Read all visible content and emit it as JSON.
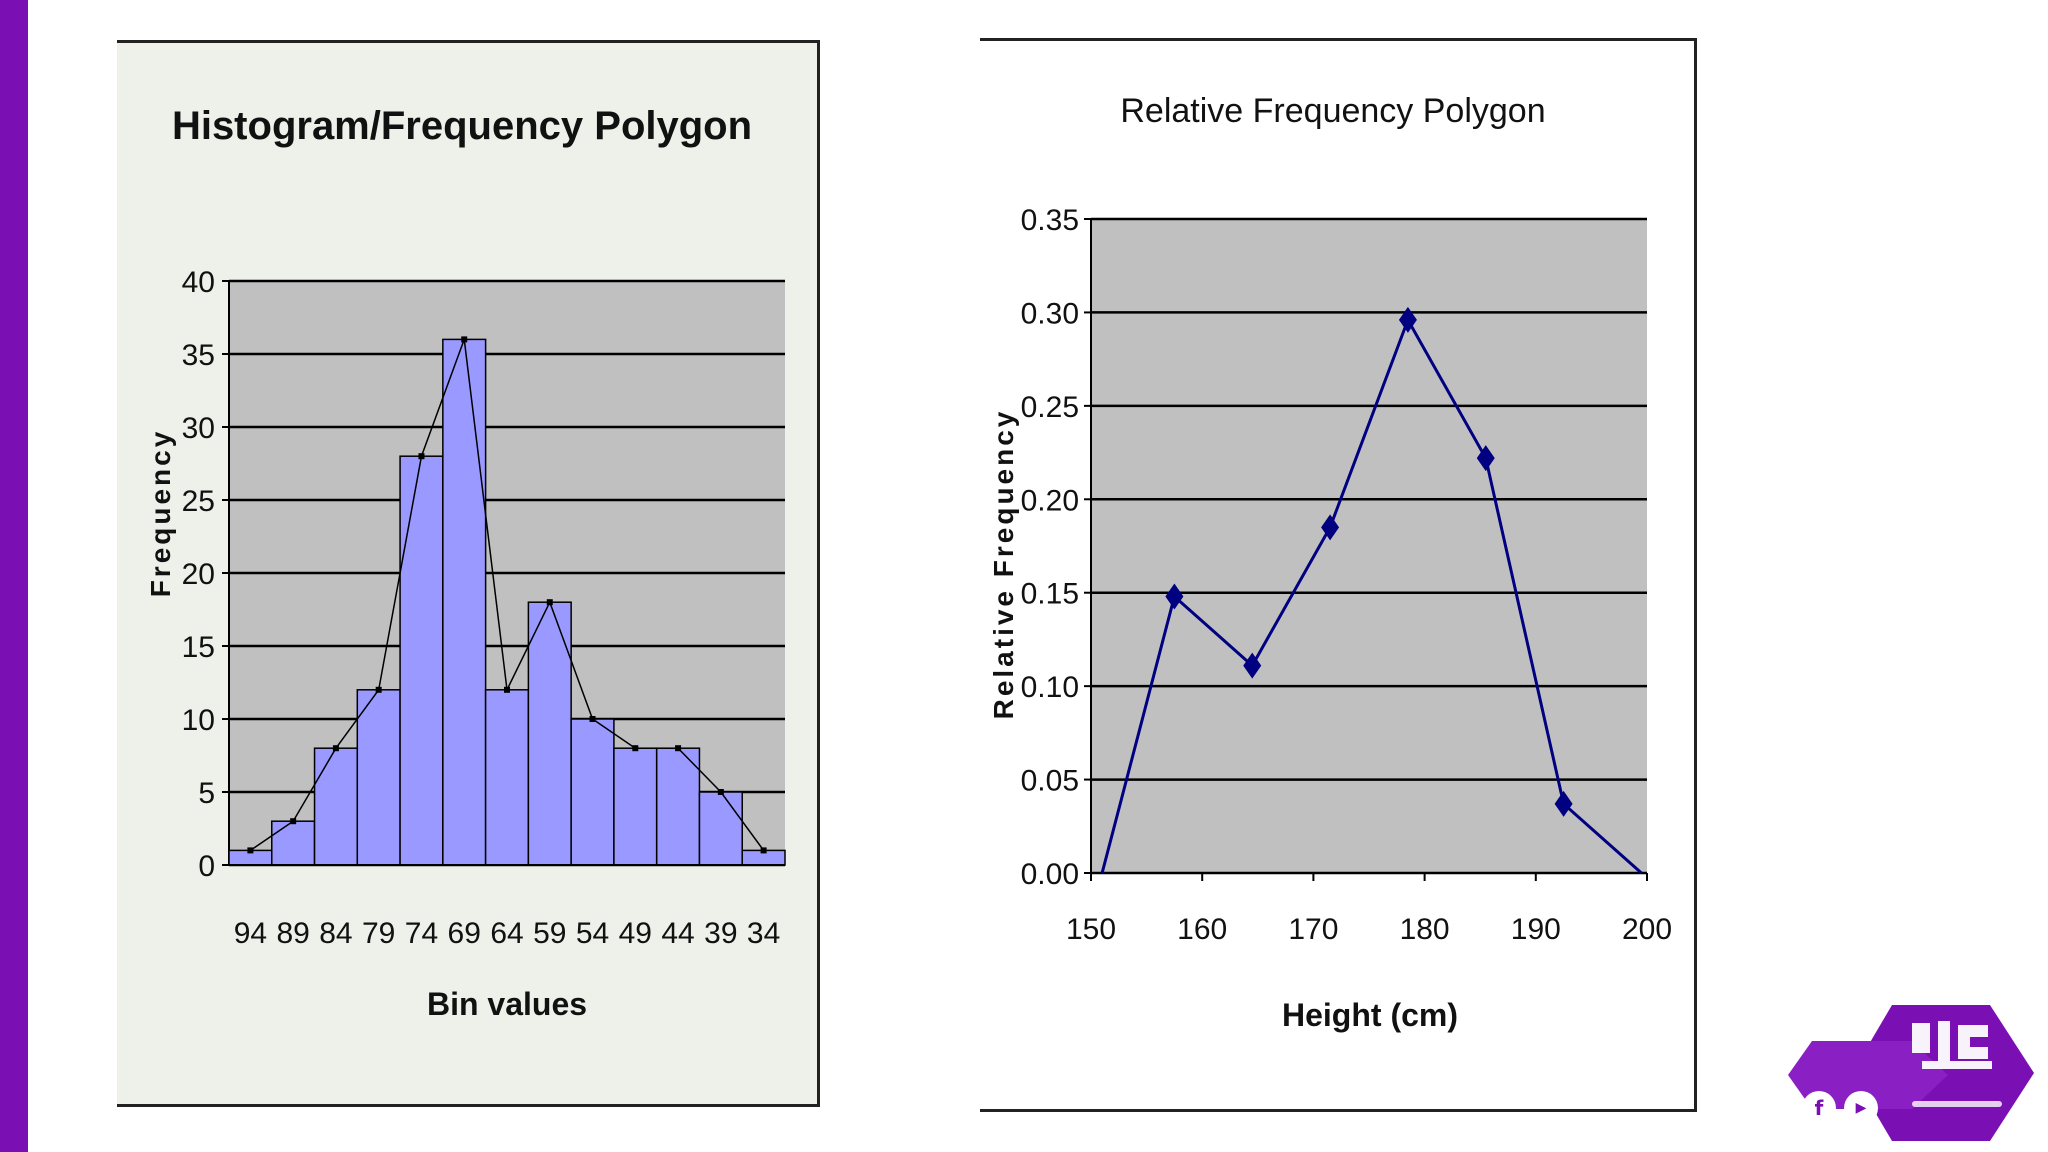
{
  "colors": {
    "left_bar": "#7a0fb3",
    "plot_bg": "#c0c0c0",
    "bar_fill": "#9999ff",
    "polygon_line": "#000080",
    "panel1_bg": "#eef0ea",
    "logo": "#7a0fb3"
  },
  "logo": {
    "facebook_icon_label": "f",
    "youtube_icon_label": "▶"
  },
  "chart_data": [
    {
      "type": "bar",
      "title": "Histogram/Frequency Polygon",
      "xlabel": "Bin values",
      "ylabel": "Frequency",
      "categories": [
        "94",
        "89",
        "84",
        "79",
        "74",
        "69",
        "64",
        "59",
        "54",
        "49",
        "44",
        "39",
        "34"
      ],
      "values": [
        1,
        3,
        8,
        12,
        28,
        36,
        12,
        18,
        10,
        8,
        8,
        5,
        1
      ],
      "overlay": "frequency-polygon",
      "ylim": [
        0,
        40
      ],
      "yticks": [
        "0",
        "5",
        "10",
        "15",
        "20",
        "25",
        "30",
        "35",
        "40"
      ],
      "grid": true
    },
    {
      "type": "line",
      "title": "Relative Frequency Polygon",
      "xlabel": "Height (cm)",
      "ylabel": "Relative Frequency",
      "x": [
        151,
        157.5,
        164.5,
        171.5,
        178.5,
        185.5,
        192.5,
        199.5
      ],
      "y": [
        0.0,
        0.148,
        0.111,
        0.185,
        0.296,
        0.222,
        0.037,
        0.0
      ],
      "markers": [
        false,
        true,
        true,
        true,
        true,
        true,
        true,
        false
      ],
      "xlim": [
        150,
        200
      ],
      "ylim": [
        0,
        0.35
      ],
      "xticks": [
        "150",
        "160",
        "170",
        "180",
        "190",
        "200"
      ],
      "yticks": [
        "0.00",
        "0.05",
        "0.10",
        "0.15",
        "0.20",
        "0.25",
        "0.30",
        "0.35"
      ],
      "grid": true
    }
  ]
}
